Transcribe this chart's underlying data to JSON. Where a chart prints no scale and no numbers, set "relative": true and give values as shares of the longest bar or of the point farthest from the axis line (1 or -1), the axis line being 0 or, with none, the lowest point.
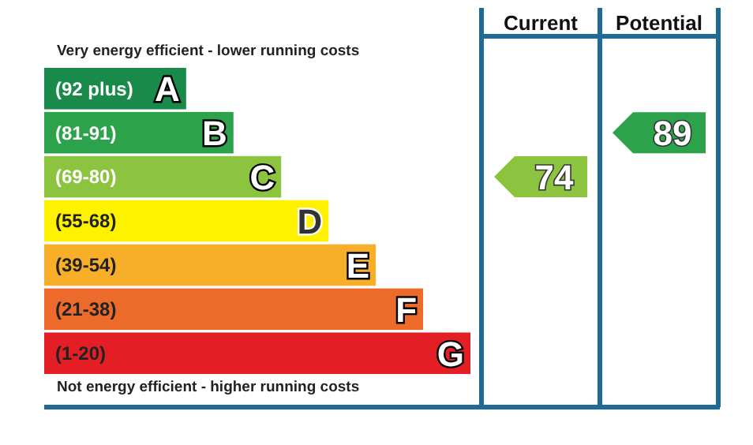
{
  "chart_data": {
    "type": "bar",
    "orientation": "horizontal",
    "relative": true,
    "title": "Very energy efficient - lower running costs",
    "categories": [
      "(92 plus)",
      "(81-91)",
      "(69-80)",
      "(55-68)",
      "(39-54)",
      "(21-38)",
      "(1-20)"
    ],
    "values": [
      0.333,
      0.444,
      0.556,
      0.667,
      0.778,
      0.889,
      1
    ],
    "colors": [
      "#1a8a4a",
      "#2ca24a",
      "#8cc43f",
      "#fff200",
      "#f7af2a",
      "#ec6a2a",
      "#e31e24"
    ],
    "annotations": [
      "Not energy efficient - higher running costs",
      "Current",
      "Potential",
      "74",
      "89",
      {
        "text": "A",
        "y": "(92 plus)"
      },
      {
        "text": "B",
        "y": "(81-91)"
      },
      {
        "text": "C",
        "y": "(69-80)"
      },
      {
        "text": "D",
        "y": "(55-68)"
      },
      {
        "text": "E",
        "y": "(39-54)"
      },
      {
        "text": "F",
        "y": "(21-38)"
      },
      {
        "text": "G",
        "y": "(1-20)"
      }
    ]
  }
}
